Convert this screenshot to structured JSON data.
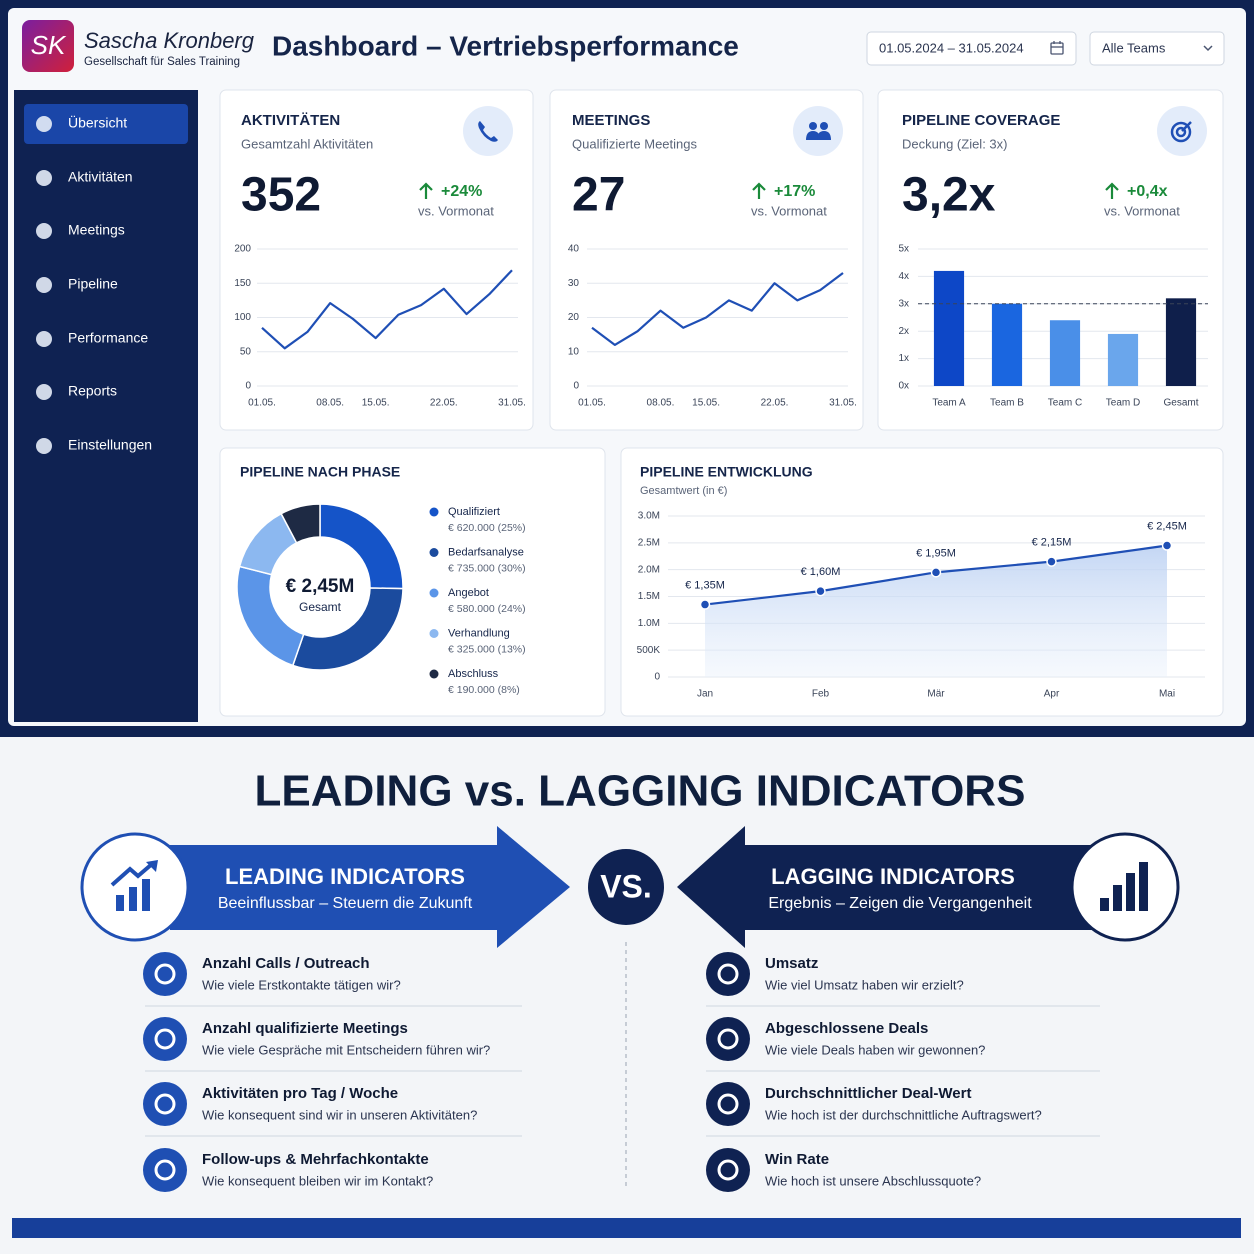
{
  "header": {
    "logo": "SK",
    "brand": "Sascha Kronberg",
    "tagline": "Gesellschaft für Sales Training",
    "title": "Dashboard – Vertriebsperformance",
    "date_range": "01.05.2024 – 31.05.2024",
    "team_filter": "Alle Teams"
  },
  "sidebar": {
    "items": [
      "Übersicht",
      "Aktivitäten",
      "Meetings",
      "Pipeline",
      "Performance",
      "Reports",
      "Einstellungen"
    ],
    "active": 0
  },
  "kpis": [
    {
      "title": "AKTIVITÄTEN",
      "subtitle": "Gesamtzahl Aktivitäten",
      "value": 352,
      "change": "+24%",
      "comparison": "vs. Vormonat"
    },
    {
      "title": "MEETINGS",
      "subtitle": "Qualifizierte Meetings",
      "value": 27,
      "change": "+17%",
      "comparison": "vs. Vormonat"
    },
    {
      "title": "PIPELINE COVERAGE",
      "subtitle": "Deckung (Ziel: 3x)",
      "value": "3,2x",
      "change": "+0,4x",
      "comparison": "vs. Vormonat"
    }
  ],
  "chart_data": [
    {
      "type": "line",
      "categories": [
        "01.05.",
        null,
        null,
        "08.05.",
        null,
        "15.05.",
        null,
        null,
        "22.05.",
        null,
        null,
        "31.05."
      ],
      "values": [
        85,
        55,
        79,
        121,
        98,
        70,
        104,
        118,
        142,
        105,
        134,
        169
      ],
      "color": "#1f4fb5",
      "ylim": [
        0,
        200
      ],
      "yticks": [
        0,
        50,
        100,
        150,
        200
      ],
      "grid": true
    },
    {
      "type": "line",
      "categories": [
        "01.05.",
        null,
        null,
        "08.05.",
        null,
        "15.05.",
        null,
        null,
        "22.05.",
        null,
        null,
        "31.05."
      ],
      "values": [
        17,
        12,
        16,
        22,
        17,
        20,
        25,
        22,
        30,
        25,
        28,
        33
      ],
      "color": "#1f4fb5",
      "ylim": [
        0,
        40
      ],
      "yticks": [
        0,
        10,
        20,
        30,
        40
      ],
      "grid": true
    },
    {
      "type": "bar",
      "categories": [
        "Team A",
        "Team B",
        "Team C",
        "Team D",
        "Gesamt"
      ],
      "values": [
        4.2,
        3.0,
        2.4,
        1.9,
        3.2
      ],
      "colors": [
        "#0d47c7",
        "#1a66e0",
        "#4a8fe8",
        "#6aa6ec",
        "#0f1f4b"
      ],
      "target_line": 3,
      "ylim": [
        0,
        5
      ],
      "yticks": [
        {
          "value": 0,
          "label": "0x"
        },
        {
          "value": 1,
          "label": "1x"
        },
        {
          "value": 2,
          "label": "2x"
        },
        {
          "value": 3,
          "label": "3x"
        },
        {
          "value": 4,
          "label": "4x"
        },
        {
          "value": 5,
          "label": "5x"
        }
      ],
      "grid": true
    },
    {
      "type": "pie",
      "title": "PIPELINE NACH PHASE",
      "center_value": "€ 2,45M",
      "center_label": "Gesamt",
      "categories": [
        "Qualifiziert",
        "Bedarfsanalyse",
        "Angebot",
        "Verhandlung",
        "Abschluss"
      ],
      "values": [
        620000,
        735000,
        580000,
        325000,
        190000
      ],
      "value_labels": [
        "€ 620.000 (25%)",
        "€ 735.000 (30%)",
        "€ 580.000 (24%)",
        "€ 325.000 (13%)",
        "€ 190.000 (8%)"
      ],
      "colors": [
        "#1554c8",
        "#1b4b9e",
        "#5b95e8",
        "#8cb8f0",
        "#1e2a44"
      ]
    },
    {
      "type": "area",
      "title": "PIPELINE ENTWICKLUNG",
      "subtitle": "Gesamtwert (in €)",
      "categories": [
        "Jan",
        "Feb",
        "Mär",
        "Apr",
        "Mai"
      ],
      "values": [
        1350000,
        1600000,
        1950000,
        2150000,
        2450000
      ],
      "value_labels": [
        "€ 1,35M",
        "€ 1,60M",
        "€ 1,95M",
        "€ 2,15M",
        "€ 2,45M"
      ],
      "color": "#1f4fb5",
      "ylim": [
        0,
        3000000
      ],
      "yticks": [
        0,
        {
          "value": 500000,
          "label": "500K"
        },
        {
          "value": 1000000,
          "label": "1.0M"
        },
        {
          "value": 1500000,
          "label": "1.5M"
        },
        {
          "value": 2000000,
          "label": "2.0M"
        },
        {
          "value": 2500000,
          "label": "2.5M"
        },
        {
          "value": 3000000,
          "label": "3.0M"
        }
      ],
      "grid": true
    }
  ],
  "infographic": {
    "title": "LEADING vs. LAGGING INDICATORS",
    "vs": "VS.",
    "leading": {
      "title": "LEADING INDICATORS",
      "subtitle": "Beeinflussbar – Steuern die Zukunft",
      "items": [
        {
          "title": "Anzahl Calls / Outreach",
          "question": "Wie viele Erstkontakte tätigen wir?"
        },
        {
          "title": "Anzahl qualifizierte Meetings",
          "question": "Wie viele Gespräche mit Entscheidern führen wir?"
        },
        {
          "title": "Aktivitäten pro Tag / Woche",
          "question": "Wie konsequent sind wir in unseren Aktivitäten?"
        },
        {
          "title": "Follow-ups & Mehrfachkontakte",
          "question": "Wie konsequent bleiben wir im Kontakt?"
        }
      ]
    },
    "lagging": {
      "title": "LAGGING INDICATORS",
      "subtitle": "Ergebnis – Zeigen die Vergangenheit",
      "items": [
        {
          "title": "Umsatz",
          "question": "Wie viel Umsatz haben wir erzielt?"
        },
        {
          "title": "Abgeschlossene Deals",
          "question": "Wie viele Deals haben wir gewonnen?"
        },
        {
          "title": "Durchschnittlicher Deal-Wert",
          "question": "Wie hoch ist der durchschnittliche Auftragswert?"
        },
        {
          "title": "Win Rate",
          "question": "Wie hoch ist unsere Abschlussquote?"
        }
      ]
    }
  }
}
